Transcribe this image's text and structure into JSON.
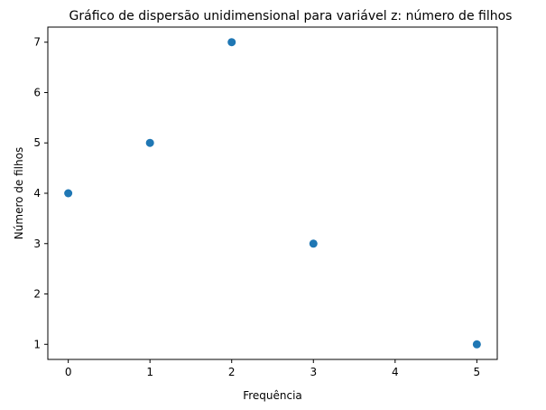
{
  "chart_data": {
    "type": "scatter",
    "title": "Gráfico de dispersão unidimensional para variável z: número de filhos",
    "xlabel": "Frequência",
    "ylabel": "Número de filhos",
    "x": [
      0,
      1,
      2,
      3,
      5
    ],
    "y": [
      4,
      5,
      7,
      3,
      1
    ],
    "xlim": [
      -0.25,
      5.25
    ],
    "ylim": [
      0.7,
      7.3
    ],
    "xticks": [
      "0",
      "1",
      "2",
      "3",
      "4",
      "5"
    ],
    "yticks": [
      "1",
      "2",
      "3",
      "4",
      "5",
      "6",
      "7"
    ],
    "grid": false,
    "marker_color": "#1f77b4"
  }
}
